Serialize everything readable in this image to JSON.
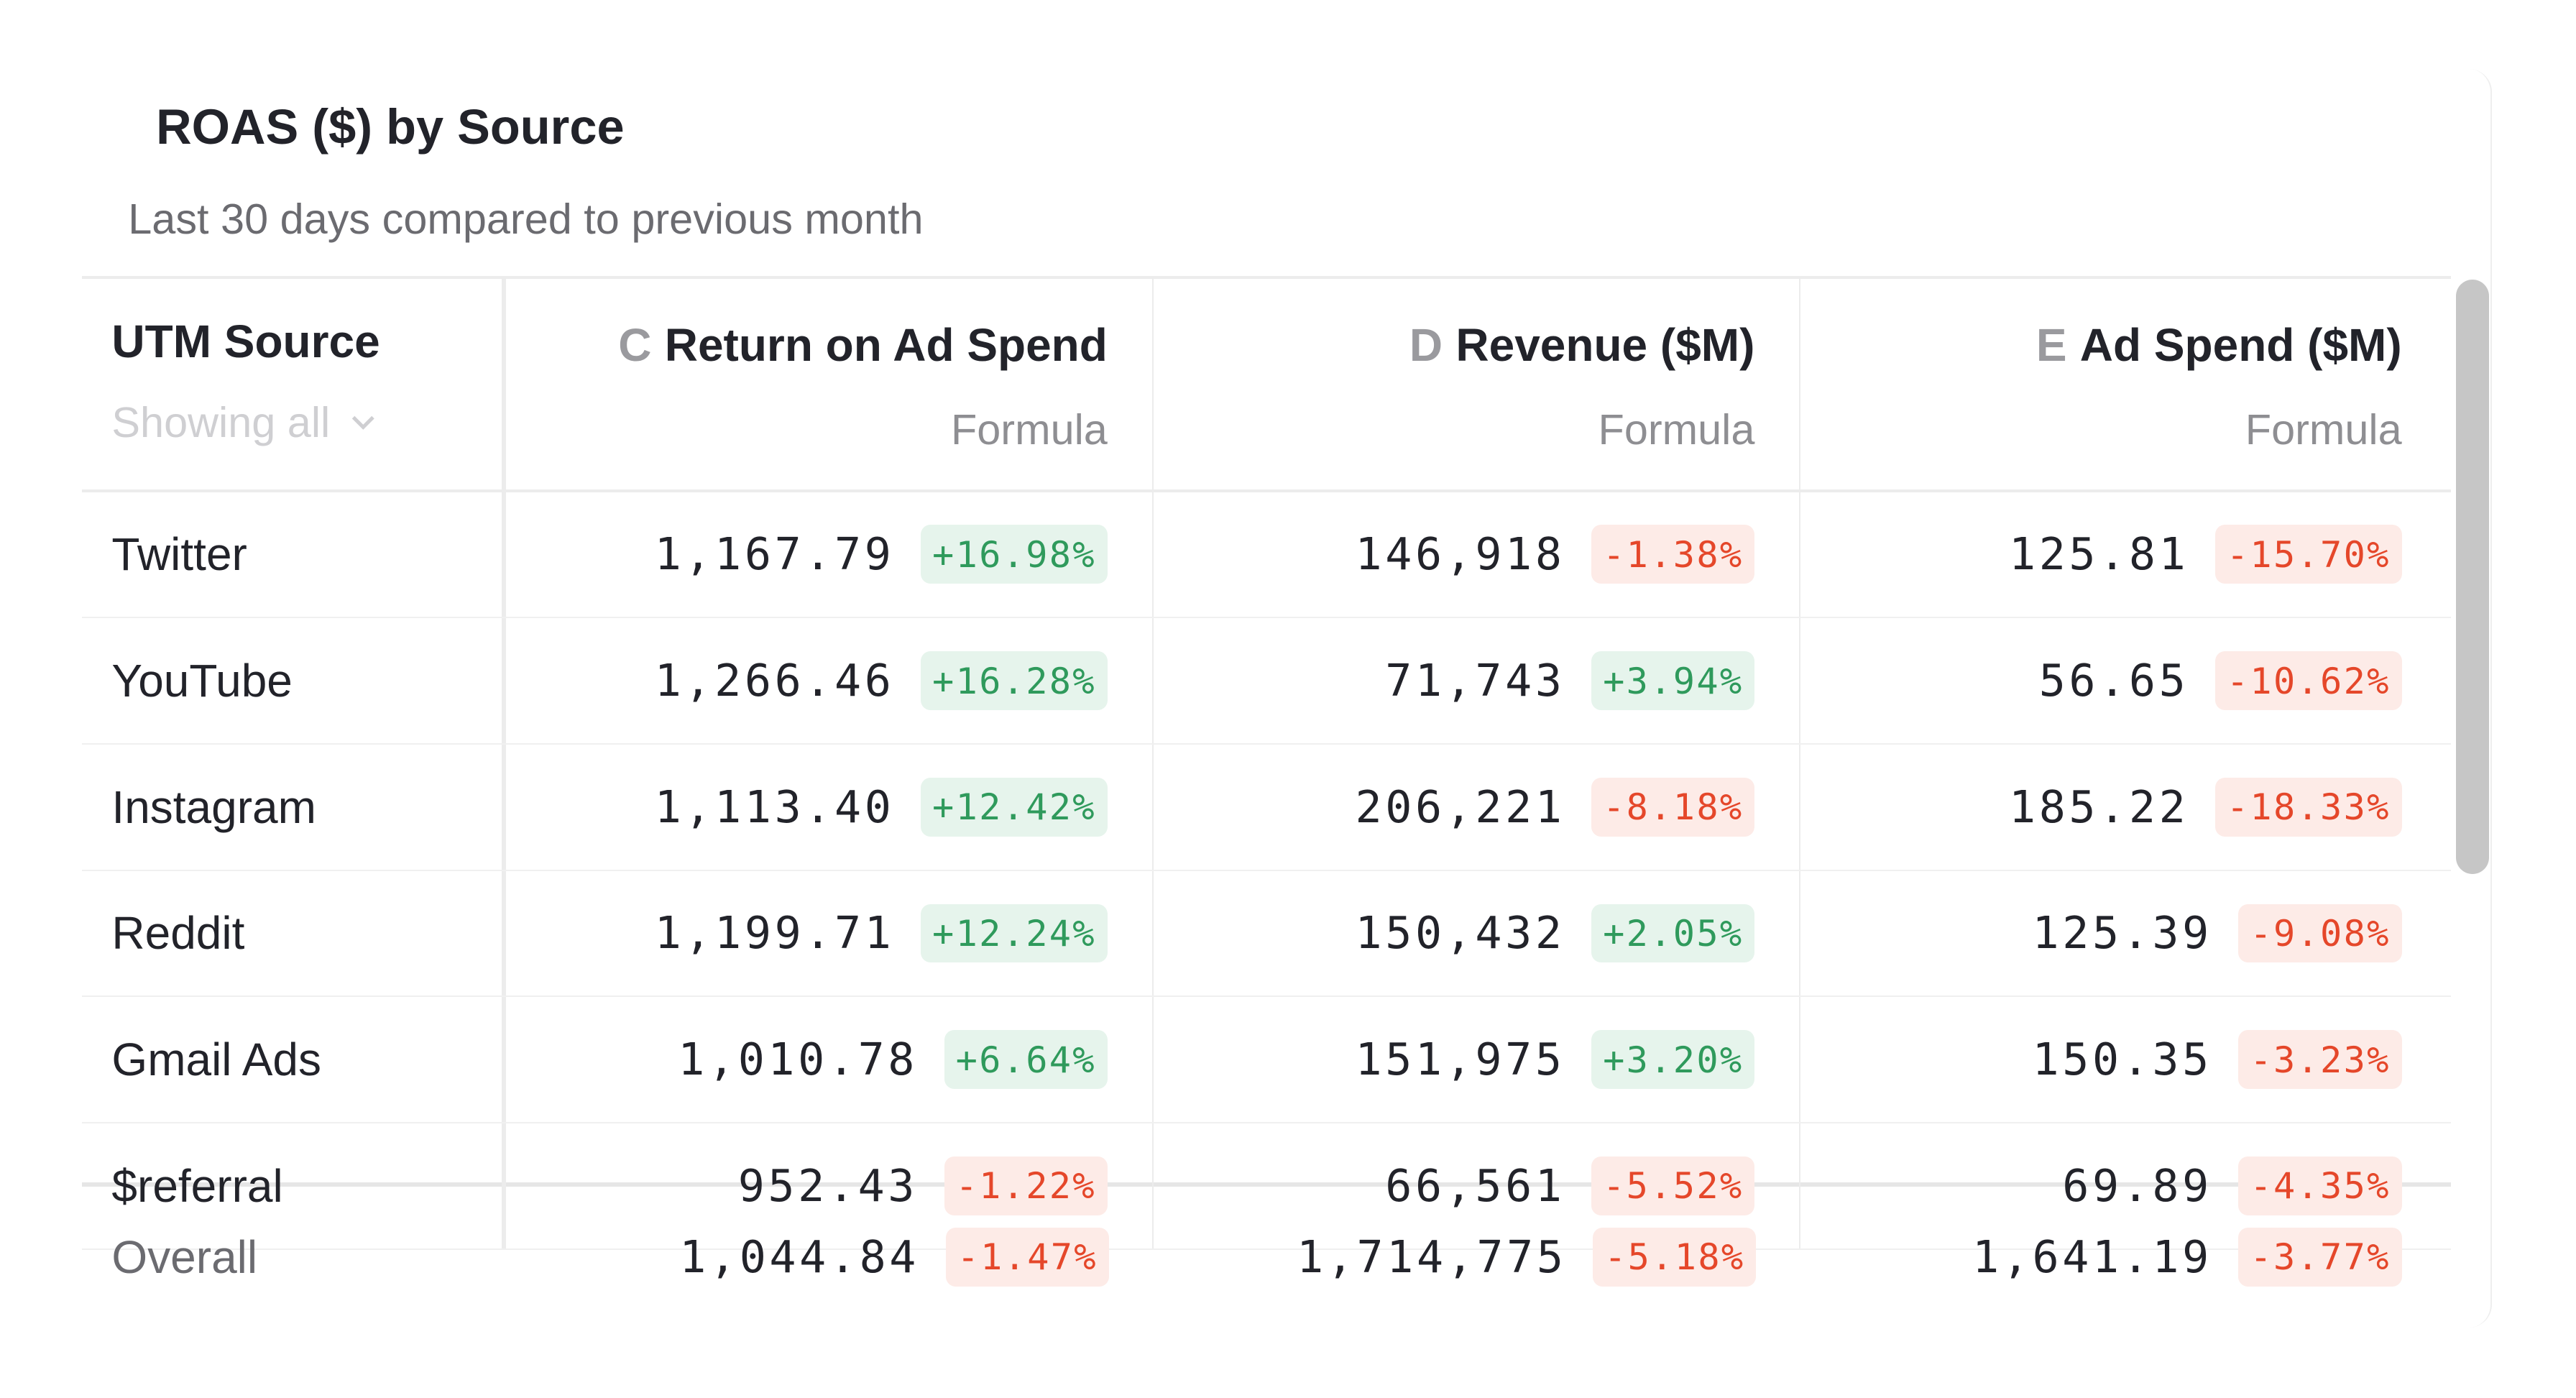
{
  "title": "ROAS ($) by Source",
  "subtitle": "Last 30 days compared to previous month",
  "header": {
    "source": {
      "label": "UTM Source",
      "filter": "Showing all"
    },
    "columns": [
      {
        "letter": "C",
        "label": "Return on Ad Spend",
        "type": "Formula"
      },
      {
        "letter": "D",
        "label": "Revenue ($M)",
        "type": "Formula"
      },
      {
        "letter": "E",
        "label": "Ad Spend ($M)",
        "type": "Formula"
      }
    ]
  },
  "rows": [
    {
      "source": "Twitter",
      "cells": [
        {
          "value": "1,167.79",
          "change": "+16.98%"
        },
        {
          "value": "146,918",
          "change": "-1.38%"
        },
        {
          "value": "125.81",
          "change": "-15.70%"
        }
      ]
    },
    {
      "source": "YouTube",
      "cells": [
        {
          "value": "1,266.46",
          "change": "+16.28%"
        },
        {
          "value": "71,743",
          "change": "+3.94%"
        },
        {
          "value": "56.65",
          "change": "-10.62%"
        }
      ]
    },
    {
      "source": "Instagram",
      "cells": [
        {
          "value": "1,113.40",
          "change": "+12.42%"
        },
        {
          "value": "206,221",
          "change": "-8.18%"
        },
        {
          "value": "185.22",
          "change": "-18.33%"
        }
      ]
    },
    {
      "source": "Reddit",
      "cells": [
        {
          "value": "1,199.71",
          "change": "+12.24%"
        },
        {
          "value": "150,432",
          "change": "+2.05%"
        },
        {
          "value": "125.39",
          "change": "-9.08%"
        }
      ]
    },
    {
      "source": "Gmail Ads",
      "cells": [
        {
          "value": "1,010.78",
          "change": "+6.64%"
        },
        {
          "value": "151,975",
          "change": "+3.20%"
        },
        {
          "value": "150.35",
          "change": "-3.23%"
        }
      ]
    },
    {
      "source": "$referral",
      "cells": [
        {
          "value": "952.43",
          "change": "-1.22%"
        },
        {
          "value": "66,561",
          "change": "-5.52%"
        },
        {
          "value": "69.89",
          "change": "-4.35%"
        }
      ]
    }
  ],
  "overall": {
    "source": "Overall",
    "cells": [
      {
        "value": "1,044.84",
        "change": "-1.47%"
      },
      {
        "value": "1,714,775",
        "change": "-5.18%"
      },
      {
        "value": "1,641.19",
        "change": "-3.77%"
      }
    ]
  },
  "colors": {
    "positive": "#2f9a5c",
    "positive_bg": "#e6f4ec",
    "negative": "#e5472a",
    "negative_bg": "#fdebe7"
  },
  "icons": {
    "filter": "chevron-down-icon"
  }
}
